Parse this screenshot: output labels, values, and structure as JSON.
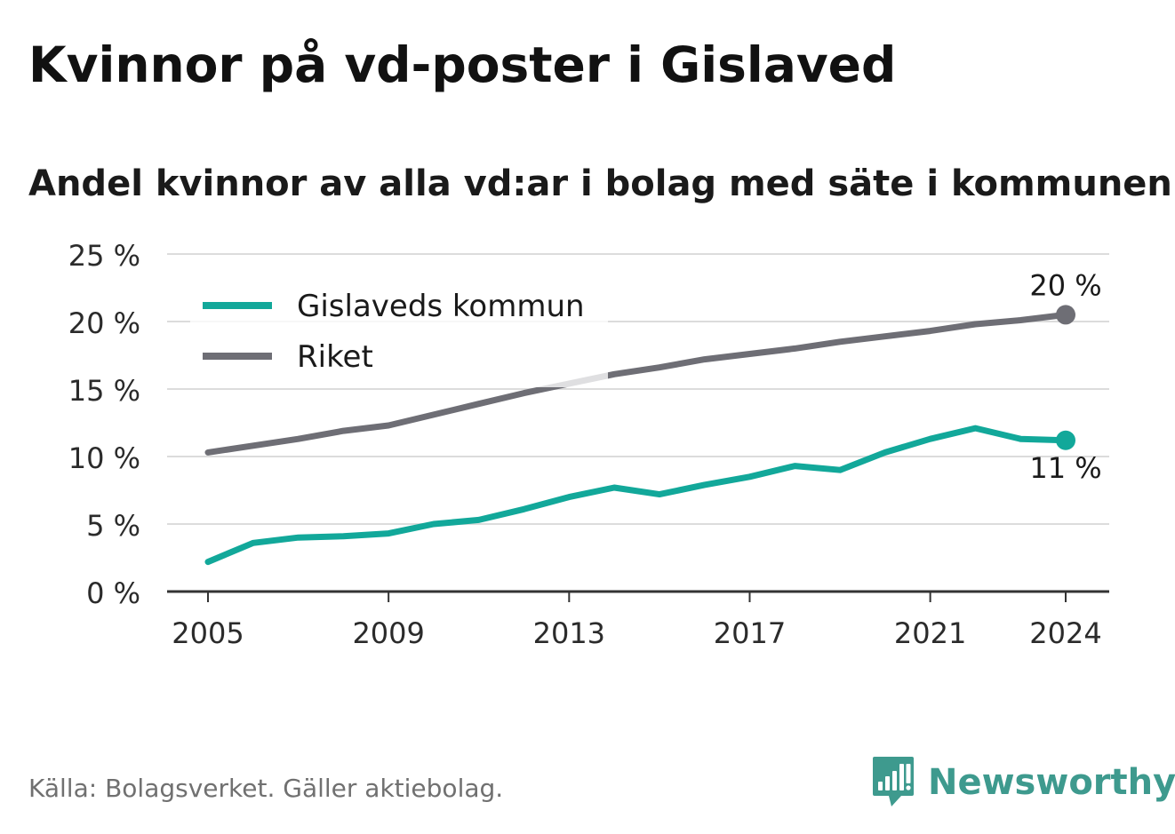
{
  "header": {
    "title": "Kvinnor på vd-poster i Gislaved",
    "subtitle": "Andel kvinnor av alla vd:ar i bolag med säte i kommunen"
  },
  "footer": {
    "source": "Källa: Bolagsverket. Gäller aktiebolag.",
    "brand": "Newsworthy",
    "brand_icon": "newsworthy-logo-icon",
    "brand_color": "#3e9a8e"
  },
  "chart_data": {
    "type": "line",
    "title": "Kvinnor på vd-poster i Gislaved",
    "subtitle": "Andel kvinnor av alla vd:ar i bolag med säte i kommunen",
    "xlabel": "",
    "ylabel": "",
    "x": [
      2005,
      2006,
      2007,
      2008,
      2009,
      2010,
      2011,
      2012,
      2013,
      2014,
      2015,
      2016,
      2017,
      2018,
      2019,
      2020,
      2021,
      2022,
      2023,
      2024
    ],
    "xticks": [
      2005,
      2009,
      2013,
      2017,
      2021,
      2024
    ],
    "xtick_labels": [
      "2005",
      "2009",
      "2013",
      "2017",
      "2021",
      "2024"
    ],
    "ylim": [
      0,
      25
    ],
    "yticks": [
      0,
      5,
      10,
      15,
      20,
      25
    ],
    "ytick_labels": [
      "0 %",
      "5 %",
      "10 %",
      "15 %",
      "20 %",
      "25 %"
    ],
    "grid": true,
    "legend_position": "top-left",
    "series": [
      {
        "name": "Gislaveds kommun",
        "color": "#12a89a",
        "values": [
          2.2,
          3.6,
          4.0,
          4.1,
          4.3,
          5.0,
          5.3,
          6.1,
          7.0,
          7.7,
          7.2,
          7.9,
          8.5,
          9.3,
          9.0,
          10.3,
          11.3,
          12.1,
          11.3,
          11.2
        ],
        "end_label": "11 %",
        "end_label_position": "below"
      },
      {
        "name": "Riket",
        "color": "#6e6e75",
        "values": [
          10.3,
          10.8,
          11.3,
          11.9,
          12.3,
          13.1,
          13.9,
          14.7,
          15.4,
          16.1,
          16.6,
          17.2,
          17.6,
          18.0,
          18.5,
          18.9,
          19.3,
          19.8,
          20.1,
          20.5
        ],
        "end_label": "20 %",
        "end_label_position": "above"
      }
    ]
  }
}
